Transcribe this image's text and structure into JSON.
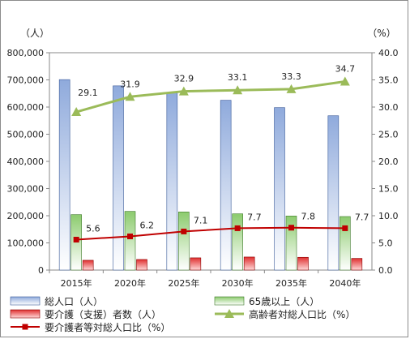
{
  "chart_data": {
    "type": "bar",
    "categories": [
      "2015年",
      "2020年",
      "2025年",
      "2030年",
      "2035年",
      "2040年"
    ],
    "left_axis": {
      "unit_label": "（人）",
      "ylim": [
        0,
        800000
      ],
      "ticks": [
        "0",
        "100,000",
        "200,000",
        "300,000",
        "400,000",
        "500,000",
        "600,000",
        "700,000",
        "800,000"
      ]
    },
    "right_axis": {
      "unit_label": "（%）",
      "ylim": [
        0,
        40
      ],
      "ticks": [
        "0.0",
        "5.0",
        "10.0",
        "15.0",
        "20.0",
        "25.0",
        "30.0",
        "35.0",
        "40.0"
      ]
    },
    "series": [
      {
        "name": "総人口（人）",
        "kind": "bar",
        "axis": "left",
        "color": "#8faadc",
        "values": [
          701000,
          678000,
          652000,
          625000,
          598000,
          568000
        ]
      },
      {
        "name": "65歳以上（人）",
        "kind": "bar",
        "axis": "left",
        "color": "#8ccb6e",
        "values": [
          204000,
          216000,
          214000,
          207000,
          199000,
          197000
        ]
      },
      {
        "name": "要介護（支援）者数（人）",
        "kind": "bar",
        "axis": "left",
        "color": "#e03030",
        "values": [
          36000,
          39000,
          45000,
          48000,
          47000,
          43000
        ]
      },
      {
        "name": "高齢者対総人口比（%）",
        "kind": "line",
        "axis": "right",
        "color": "#9bbb59",
        "values": [
          29.1,
          31.9,
          32.9,
          33.1,
          33.3,
          34.7
        ],
        "labels": [
          "29.1",
          "31.9",
          "32.9",
          "33.1",
          "33.3",
          "34.7"
        ]
      },
      {
        "name": "要介護者等対総人口比（%）",
        "kind": "line",
        "axis": "right",
        "color": "#c00000",
        "values": [
          5.6,
          6.2,
          7.1,
          7.7,
          7.8,
          7.7
        ],
        "labels": [
          "5.6",
          "6.2",
          "7.1",
          "7.7",
          "7.8",
          "7.7"
        ]
      }
    ],
    "legend_position": "bottom",
    "grid": false
  }
}
